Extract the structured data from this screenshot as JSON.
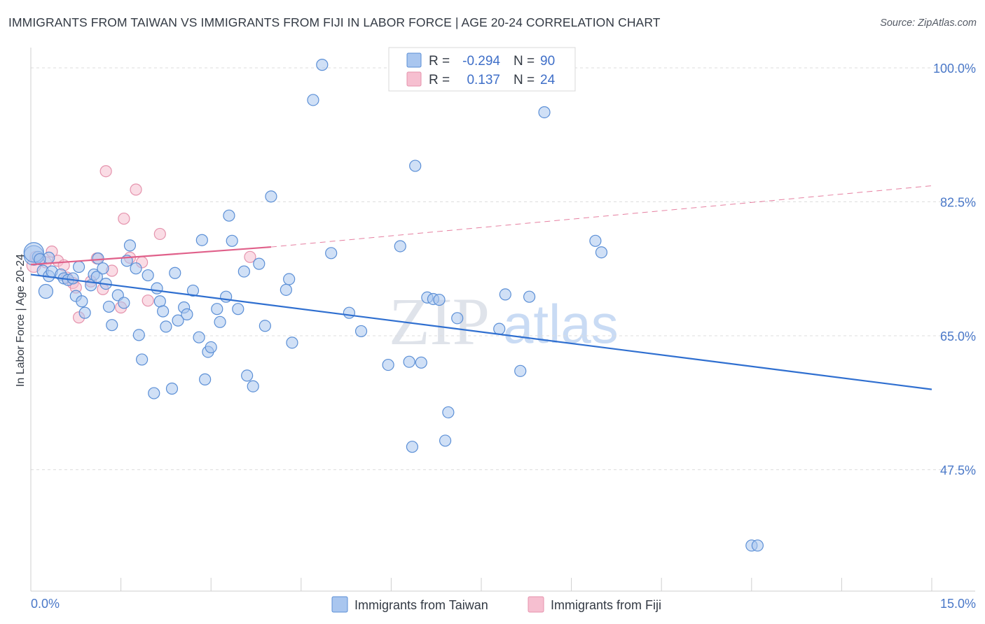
{
  "title": "IMMIGRANTS FROM TAIWAN VS IMMIGRANTS FROM FIJI IN LABOR FORCE | AGE 20-24 CORRELATION CHART",
  "source": "Source: ZipAtlas.com",
  "watermark": {
    "zip": "ZIP",
    "atlas": "atlas"
  },
  "colors": {
    "taiwan_fill": "#a9c6ef",
    "taiwan_stroke": "#5b8fd6",
    "taiwan_line": "#2f6fd0",
    "fiji_fill": "#f6bfd0",
    "fiji_stroke": "#e593ad",
    "fiji_line": "#e0608a",
    "tick": "#4a78c8",
    "grid": "#dddddd"
  },
  "legend": {
    "rows": [
      {
        "r_label": "R =",
        "r_value": "-0.294",
        "n_label": "N =",
        "n_value": "90"
      },
      {
        "r_label": "R =",
        "r_value": "0.137",
        "n_label": "N =",
        "n_value": "24"
      }
    ]
  },
  "chart_data": {
    "type": "scatter",
    "title": "IMMIGRANTS FROM TAIWAN VS IMMIGRANTS FROM FIJI IN LABOR FORCE | AGE 20-24 CORRELATION CHART",
    "xlabel": "",
    "ylabel": "In Labor Force | Age 20-24",
    "xlim": [
      0,
      15
    ],
    "ylim": [
      32,
      102
    ],
    "x_ticks": [
      0,
      15
    ],
    "x_tick_labels": [
      "0.0%",
      "15.0%"
    ],
    "y_ticks": [
      47.5,
      65.0,
      82.5,
      100.0
    ],
    "y_tick_labels": [
      "47.5%",
      "65.0%",
      "82.5%",
      "100.0%"
    ],
    "grid": true,
    "legend_position": "top-center",
    "series": [
      {
        "name": "Immigrants from Taiwan",
        "points": [
          [
            0.05,
            75.5
          ],
          [
            0.12,
            75.3
          ],
          [
            0.2,
            73.5
          ],
          [
            0.3,
            75.2
          ],
          [
            0.3,
            72.8
          ],
          [
            0.35,
            73.4
          ],
          [
            0.25,
            70.8
          ],
          [
            0.5,
            73
          ],
          [
            0.55,
            72.5
          ],
          [
            0.62,
            72.3
          ],
          [
            0.7,
            72.5
          ],
          [
            0.75,
            70.2
          ],
          [
            0.8,
            74
          ],
          [
            0.85,
            69.5
          ],
          [
            0.9,
            68
          ],
          [
            1.0,
            71.6
          ],
          [
            1.05,
            73
          ],
          [
            1.1,
            72.7
          ],
          [
            1.12,
            75.1
          ],
          [
            1.2,
            73.8
          ],
          [
            1.25,
            71.8
          ],
          [
            1.3,
            68.8
          ],
          [
            1.35,
            66.4
          ],
          [
            1.45,
            70.3
          ],
          [
            1.55,
            69.3
          ],
          [
            1.6,
            74.8
          ],
          [
            1.65,
            76.8
          ],
          [
            1.75,
            73.8
          ],
          [
            1.8,
            65.1
          ],
          [
            1.85,
            61.9
          ],
          [
            1.95,
            72.9
          ],
          [
            2.05,
            57.5
          ],
          [
            2.1,
            71.2
          ],
          [
            2.15,
            69.5
          ],
          [
            2.2,
            68.2
          ],
          [
            2.25,
            66.2
          ],
          [
            2.35,
            58.1
          ],
          [
            2.4,
            73.2
          ],
          [
            2.45,
            67
          ],
          [
            2.55,
            68.7
          ],
          [
            2.6,
            67.8
          ],
          [
            2.7,
            70.9
          ],
          [
            2.8,
            64.8
          ],
          [
            2.85,
            77.5
          ],
          [
            2.9,
            59.3
          ],
          [
            2.95,
            62.9
          ],
          [
            3.0,
            63.5
          ],
          [
            3.1,
            68.5
          ],
          [
            3.15,
            66.8
          ],
          [
            3.25,
            70.1
          ],
          [
            3.3,
            80.7
          ],
          [
            3.35,
            77.4
          ],
          [
            3.45,
            68.5
          ],
          [
            3.55,
            73.4
          ],
          [
            3.6,
            59.8
          ],
          [
            3.7,
            58.4
          ],
          [
            3.8,
            74.4
          ],
          [
            3.9,
            66.3
          ],
          [
            4.0,
            83.2
          ],
          [
            4.25,
            71
          ],
          [
            4.3,
            72.4
          ],
          [
            4.35,
            64.1
          ],
          [
            4.7,
            95.8
          ],
          [
            4.85,
            100.4
          ],
          [
            5.0,
            75.8
          ],
          [
            5.3,
            68
          ],
          [
            5.5,
            65.6
          ],
          [
            5.95,
            61.2
          ],
          [
            6.15,
            76.7
          ],
          [
            6.3,
            61.6
          ],
          [
            6.35,
            50.5
          ],
          [
            6.4,
            87.2
          ],
          [
            6.5,
            61.5
          ],
          [
            6.6,
            70
          ],
          [
            6.7,
            69.8
          ],
          [
            6.8,
            69.7
          ],
          [
            6.9,
            51.3
          ],
          [
            6.95,
            55
          ],
          [
            7.1,
            67.3
          ],
          [
            7.8,
            65.9
          ],
          [
            7.9,
            70.4
          ],
          [
            8.15,
            60.4
          ],
          [
            8.3,
            70.1
          ],
          [
            8.55,
            94.2
          ],
          [
            9.4,
            77.4
          ],
          [
            9.5,
            75.9
          ],
          [
            12.0,
            37.6
          ],
          [
            12.1,
            37.6
          ],
          [
            0.05,
            75.9
          ],
          [
            0.15,
            75.0
          ]
        ]
      },
      {
        "name": "Immigrants from Fiji",
        "points": [
          [
            0.05,
            74.2
          ],
          [
            0.15,
            75.1
          ],
          [
            0.25,
            74.6
          ],
          [
            0.35,
            76
          ],
          [
            0.45,
            74.8
          ],
          [
            0.55,
            74.2
          ],
          [
            0.6,
            72.6
          ],
          [
            0.7,
            71.9
          ],
          [
            0.75,
            71.3
          ],
          [
            0.8,
            67.4
          ],
          [
            1.0,
            72.1
          ],
          [
            1.1,
            75.1
          ],
          [
            1.2,
            71.1
          ],
          [
            1.25,
            86.5
          ],
          [
            1.35,
            73.5
          ],
          [
            1.5,
            68.7
          ],
          [
            1.55,
            80.3
          ],
          [
            1.65,
            75.2
          ],
          [
            1.75,
            84.1
          ],
          [
            1.85,
            74.6
          ],
          [
            1.95,
            69.6
          ],
          [
            2.15,
            78.3
          ],
          [
            3.65,
            75.3
          ],
          [
            0.08,
            75.3
          ]
        ]
      }
    ],
    "trend_lines": [
      {
        "series": "Immigrants from Taiwan",
        "x": [
          0,
          15
        ],
        "y": [
          73.0,
          58.0
        ]
      },
      {
        "series": "Immigrants from Fiji",
        "solid_x": [
          0,
          4.0
        ],
        "solid_y": [
          74.3,
          76.6
        ],
        "dashed_x": [
          4.0,
          15
        ],
        "dashed_y": [
          76.6,
          84.6
        ]
      }
    ]
  }
}
